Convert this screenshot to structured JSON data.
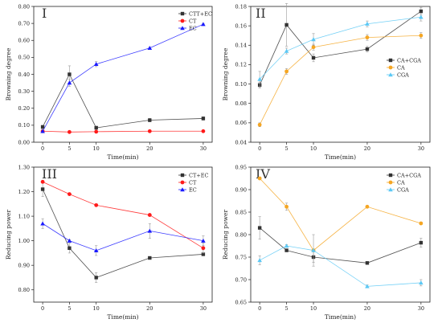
{
  "chart_data": [
    {
      "type": "line",
      "panel_label": "I",
      "x": [
        0,
        5,
        10,
        20,
        30
      ],
      "xlabel": "Time(min)",
      "ylabel": "Browning degree",
      "xticks": [
        "0",
        "5",
        "10",
        "20",
        "30"
      ],
      "ylim": [
        0,
        0.8
      ],
      "yticks": [
        "0.00",
        "0.10",
        "0.20",
        "0.30",
        "0.40",
        "0.50",
        "0.60",
        "0.70",
        "0.80"
      ],
      "legend_position": "top-right",
      "series": [
        {
          "name": "CTT+EC",
          "color": "#333333",
          "marker": "square",
          "values": [
            0.09,
            0.4,
            0.085,
            0.13,
            0.14
          ],
          "errors": [
            0.01,
            0.05,
            0.01,
            0.01,
            0.01
          ]
        },
        {
          "name": "CT",
          "color": "#ff1a1a",
          "marker": "circle",
          "values": [
            0.065,
            0.06,
            0.062,
            0.065,
            0.065
          ],
          "errors": [
            0.005,
            0.005,
            0.005,
            0.005,
            0.005
          ]
        },
        {
          "name": "EC",
          "color": "#1a1aff",
          "marker": "triangle",
          "values": [
            0.065,
            0.35,
            0.46,
            0.555,
            0.695
          ],
          "errors": [
            0.01,
            0.02,
            0.015,
            0.005,
            0.005
          ]
        }
      ]
    },
    {
      "type": "line",
      "panel_label": "II",
      "x": [
        0,
        5,
        10,
        20,
        30
      ],
      "xlabel": "Time(min)",
      "ylabel": "Browning degree",
      "xticks": [
        "0",
        "5",
        "10",
        "20",
        "30"
      ],
      "ylim": [
        0.04,
        0.18
      ],
      "yticks": [
        "0.04",
        "0.06",
        "0.08",
        "0.10",
        "0.12",
        "0.14",
        "0.16",
        "0.18"
      ],
      "legend_position": "right",
      "series": [
        {
          "name": "CA+CGA",
          "color": "#333333",
          "marker": "square",
          "values": [
            0.099,
            0.161,
            0.127,
            0.136,
            0.175
          ],
          "errors": [
            0.003,
            0.022,
            0.004,
            0.003,
            0.004
          ]
        },
        {
          "name": "CA",
          "color": "#f5a623",
          "marker": "circle",
          "values": [
            0.058,
            0.113,
            0.138,
            0.148,
            0.15
          ],
          "errors": [
            0.002,
            0.003,
            0.003,
            0.003,
            0.003
          ]
        },
        {
          "name": "CGA",
          "color": "#5bc8f5",
          "marker": "triangle",
          "values": [
            0.105,
            0.134,
            0.146,
            0.162,
            0.169
          ],
          "errors": [
            0.008,
            0.003,
            0.006,
            0.003,
            0.004
          ]
        }
      ]
    },
    {
      "type": "line",
      "panel_label": "III",
      "x": [
        0,
        5,
        10,
        20,
        30
      ],
      "xlabel": "Time(min)",
      "ylabel": "Reducing power",
      "xticks": [
        "0",
        "5",
        "10",
        "20",
        "30"
      ],
      "ylim": [
        0.75,
        1.3
      ],
      "yticks": [
        "0.80",
        "0.90",
        "1.00",
        "1.10",
        "1.20",
        "1.30"
      ],
      "legend_position": "top-right",
      "series": [
        {
          "name": "CT+EC",
          "color": "#333333",
          "marker": "square",
          "values": [
            1.21,
            0.97,
            0.85,
            0.93,
            0.945
          ],
          "errors": [
            0.03,
            0.02,
            0.02,
            0.005,
            0.005
          ]
        },
        {
          "name": "CT",
          "color": "#ff1a1a",
          "marker": "circle",
          "values": [
            1.24,
            1.19,
            1.145,
            1.105,
            0.97
          ],
          "errors": [
            0.005,
            0.005,
            0.005,
            0.005,
            0.02
          ]
        },
        {
          "name": "EC",
          "color": "#1a1aff",
          "marker": "triangle",
          "values": [
            1.07,
            1.0,
            0.96,
            1.04,
            1.0
          ],
          "errors": [
            0.02,
            0.005,
            0.02,
            0.03,
            0.02
          ]
        }
      ]
    },
    {
      "type": "line",
      "panel_label": "IV",
      "x": [
        0,
        5,
        10,
        20,
        30
      ],
      "xlabel": "Time(min)",
      "ylabel": "Reducing power",
      "xticks": [
        "0",
        "5",
        "10",
        "20",
        "30"
      ],
      "ylim": [
        0.65,
        0.95
      ],
      "yticks": [
        "0.65",
        "0.70",
        "0.75",
        "0.80",
        "0.85",
        "0.90",
        "0.95"
      ],
      "legend_position": "top-right",
      "series": [
        {
          "name": "CA+CGA",
          "color": "#333333",
          "marker": "square",
          "values": [
            0.815,
            0.765,
            0.75,
            0.737,
            0.782
          ],
          "errors": [
            0.025,
            0.003,
            0.012,
            0.002,
            0.01
          ]
        },
        {
          "name": "CA",
          "color": "#f5a623",
          "marker": "circle",
          "values": [
            0.925,
            0.862,
            0.765,
            0.862,
            0.825
          ],
          "errors": [
            0.003,
            0.008,
            0.003,
            0.002,
            0.003
          ]
        },
        {
          "name": "CGA",
          "color": "#5bc8f5",
          "marker": "triangle",
          "values": [
            0.743,
            0.775,
            0.765,
            0.685,
            0.693
          ],
          "errors": [
            0.01,
            0.003,
            0.035,
            0.003,
            0.007
          ]
        }
      ]
    }
  ]
}
